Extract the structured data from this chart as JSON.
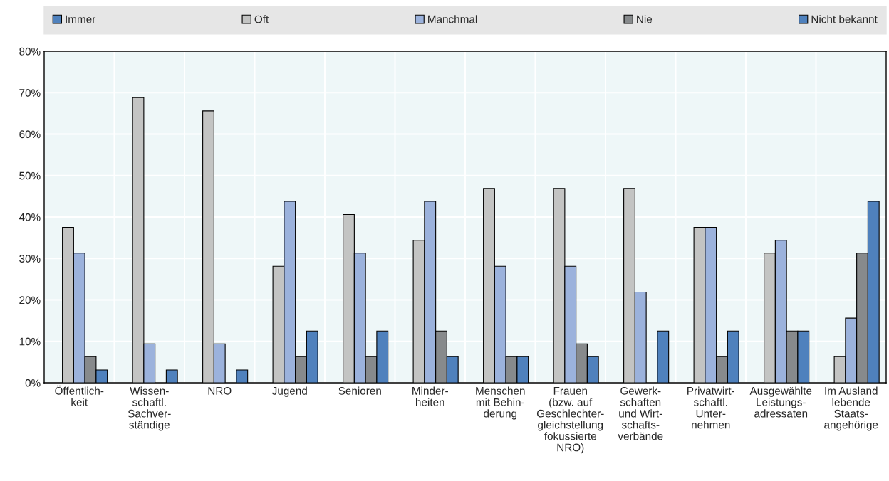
{
  "chart_data": {
    "type": "bar",
    "categories": [
      "Öffentlich-\nkeit",
      "Wissen-\nschaftl.\nSachver-\nständige",
      "NRO",
      "Jugend",
      "Senioren",
      "Minder-\nheiten",
      "Menschen\nmit Behin-\nderung",
      "Frauen\n(bzw. auf\nGeschlechter-\ngleichstellung\nfokussierte\nNRO)",
      "Gewerk-\nschaften\nund Wirt-\nschafts-\nverbände",
      "Privatwirt-\nschaftl.\nUnter-\nnehmen",
      "Ausgewählte\nLeistungs-\nadressaten",
      "Im Ausland\nlebende\nStaats-\nangehörige"
    ],
    "series": [
      {
        "name": "Immer",
        "color": "#4f81bd",
        "values": [
          0,
          0,
          0,
          0,
          0,
          0,
          0,
          0,
          0,
          0,
          0,
          0
        ]
      },
      {
        "name": "Oft",
        "color": "#c3c4c3",
        "values": [
          37.5,
          68.8,
          65.6,
          28.1,
          40.6,
          34.4,
          46.9,
          46.9,
          46.9,
          37.5,
          31.3,
          6.3
        ]
      },
      {
        "name": "Manchmal",
        "color": "#9bb2dc",
        "values": [
          31.3,
          9.4,
          9.4,
          43.8,
          31.3,
          43.8,
          28.1,
          28.1,
          21.9,
          37.5,
          34.4,
          15.6
        ]
      },
      {
        "name": "Nie",
        "color": "#878a8c",
        "values": [
          6.3,
          0,
          0,
          6.3,
          6.3,
          12.5,
          6.3,
          9.4,
          0,
          6.3,
          12.5,
          31.3
        ]
      },
      {
        "name": "Nicht bekannt",
        "color": "#4f81bd",
        "values": [
          3.1,
          3.1,
          3.1,
          12.5,
          12.5,
          6.3,
          6.3,
          6.3,
          12.5,
          12.5,
          12.5,
          43.8
        ]
      }
    ],
    "ylim": [
      0,
      80
    ],
    "yticks": [
      {
        "value": 0,
        "label": "0%"
      },
      {
        "value": 10,
        "label": "10%"
      },
      {
        "value": 20,
        "label": "20%"
      },
      {
        "value": 30,
        "label": "30%"
      },
      {
        "value": 40,
        "label": "40%"
      },
      {
        "value": 50,
        "label": "50%"
      },
      {
        "value": 60,
        "label": "60%"
      },
      {
        "value": 70,
        "label": "70%"
      },
      {
        "value": 80,
        "label": "80%"
      }
    ],
    "grid": true,
    "legend": "top"
  }
}
